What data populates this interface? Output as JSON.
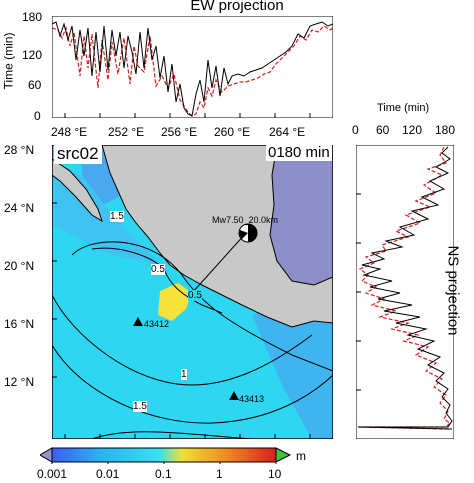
{
  "ew_panel": {
    "title": "EW projection",
    "ylabel": "Time (min)",
    "yticks": [
      "0",
      "60",
      "120",
      "180"
    ],
    "xticks": [
      "248 °E",
      "252 °E",
      "256 °E",
      "260 °E",
      "264 °E"
    ],
    "series_colors": {
      "observed": "#000000",
      "model": "#d0211f"
    }
  },
  "ns_panel": {
    "title": "NS projection",
    "xlabel": "Time (min)",
    "xticks": [
      "0",
      "60",
      "120",
      "180"
    ]
  },
  "map_panel": {
    "source_label": "src02",
    "time_label": "0180 min",
    "event_label": "Mw7.50_20.0km",
    "yticks": [
      "28 °N",
      "24 °N",
      "20 °N",
      "16 °N",
      "12 °N"
    ],
    "xticks": [
      "248 °E",
      "252 °E",
      "256 °E",
      "260 °E",
      "264 °E"
    ],
    "contour_labels": [
      "0.5",
      "0.5",
      "1",
      "1.5",
      "1.5"
    ],
    "stations": [
      "43412",
      "43413"
    ],
    "colors": {
      "ocean": "#2ed6f2",
      "land": "#c8c8c8",
      "inland": "#8e8ec8",
      "deep": "#4aa8f0",
      "source": "#f5e23a"
    }
  },
  "colorbar": {
    "ticks": [
      "0.001",
      "0.01",
      "0.1",
      "1",
      "10"
    ],
    "unit": "m",
    "colors": [
      "#3a5ef2",
      "#2bb4f0",
      "#38e0f0",
      "#f0e036",
      "#f08a20",
      "#d81f1f"
    ]
  }
}
